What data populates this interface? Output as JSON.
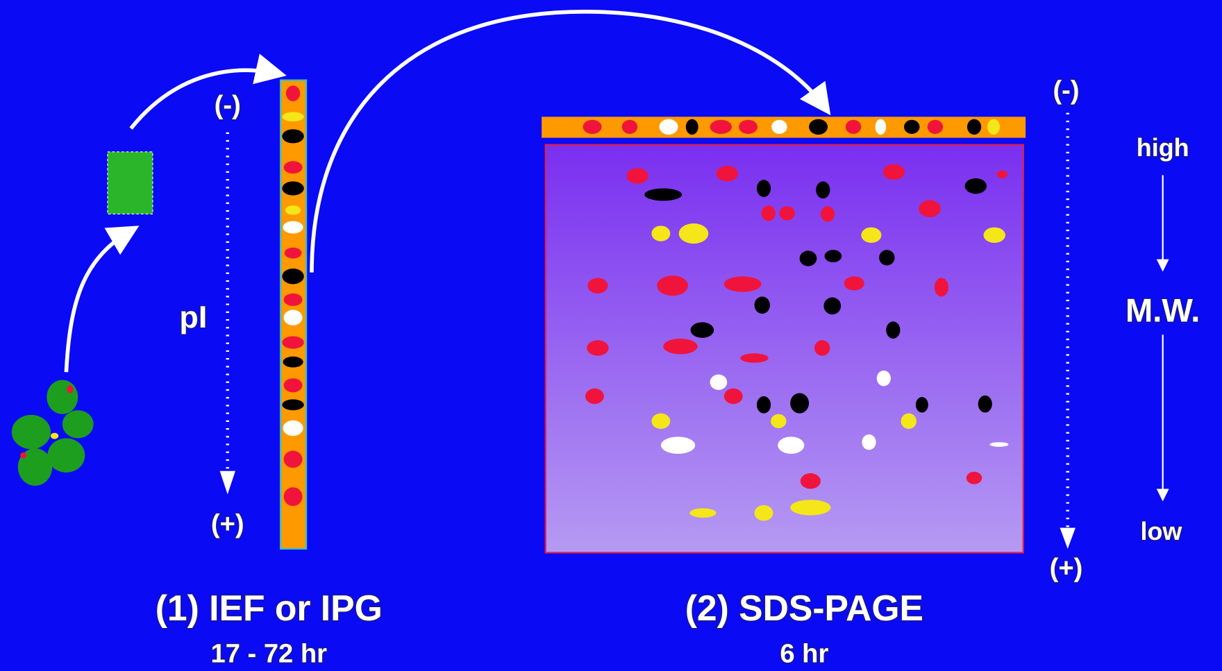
{
  "ief": {
    "minus": "(-)",
    "axis_label": "pI",
    "plus": "(+)",
    "title": "(1) IEF or IPG",
    "duration": "17 - 72 hr"
  },
  "sds": {
    "minus": "(-)",
    "plus": "(+)",
    "title": "(2) SDS-PAGE",
    "duration": "6 hr"
  },
  "mw": {
    "top": "high",
    "label": "M.W.",
    "bottom": "low"
  }
}
